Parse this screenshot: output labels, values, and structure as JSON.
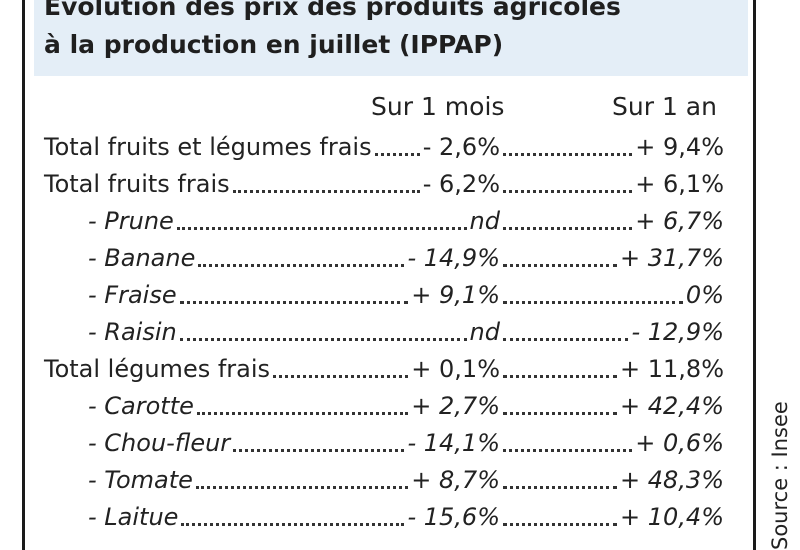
{
  "title": {
    "line1": "Évolution des prix des produits agricoles",
    "line2": "à la production en juillet (IPPAP)"
  },
  "columns": {
    "month": "Sur 1 mois",
    "year": "Sur 1 an"
  },
  "rows": [
    {
      "label": "Total fruits et légumes frais",
      "month": "- 2,6%",
      "year": "+ 9,4%"
    },
    {
      "label": "Total fruits frais",
      "month": "- 6,2%",
      "year": "+ 6,1%"
    },
    {
      "label": "- Prune",
      "month": "nd",
      "year": "+ 6,7%"
    },
    {
      "label": "- Banane",
      "month": "- 14,9%",
      "year": "+ 31,7%"
    },
    {
      "label": "- Fraise",
      "month": "+ 9,1%",
      "year": "0%"
    },
    {
      "label": "- Raisin",
      "month": "nd",
      "year": "- 12,9%"
    },
    {
      "label": "Total légumes frais",
      "month": "+ 0,1%",
      "year": "+ 11,8%"
    },
    {
      "label": "- Carotte",
      "month": "+ 2,7%",
      "year": "+ 42,4%"
    },
    {
      "label": "- Chou-fleur",
      "month": "- 14,1%",
      "year": "+ 0,6%"
    },
    {
      "label": "- Tomate",
      "month": "+ 8,7%",
      "year": "+ 48,3%"
    },
    {
      "label": "- Laitue",
      "month": "- 15,6%",
      "year": "+ 10,4%"
    }
  ],
  "source": "Source : Insee"
}
